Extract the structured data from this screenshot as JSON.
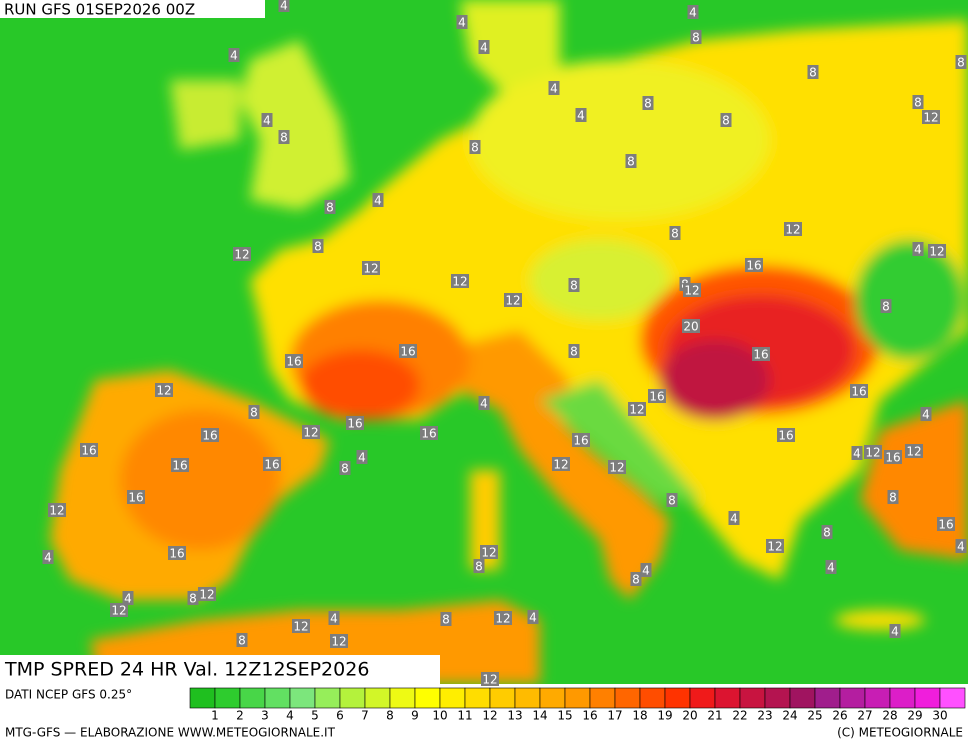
{
  "header": {
    "run": "RUN GFS 01SEP2026 00Z",
    "title": "TMP SPRED 24 HR Val. 12Z12SEP2026"
  },
  "footer": {
    "source": "DATI NCEP GFS 0.25°",
    "credit": "MTG-GFS — ELABORAZIONE WWW.METEOGIORNALE.IT",
    "copyright": "(C) METEOGIORNALE"
  },
  "colorbar": {
    "ticks": [
      1,
      2,
      3,
      4,
      5,
      6,
      7,
      8,
      9,
      10,
      11,
      12,
      13,
      14,
      15,
      16,
      17,
      18,
      19,
      20,
      21,
      22,
      23,
      24,
      25,
      26,
      27,
      28,
      29,
      30
    ],
    "colors": [
      "#1fbf1f",
      "#2ecc2e",
      "#48d648",
      "#62e062",
      "#7ce67c",
      "#96ee5a",
      "#b4f23c",
      "#d2f628",
      "#eefa14",
      "#ffff00",
      "#ffee00",
      "#ffdd00",
      "#ffcc00",
      "#ffbb00",
      "#ffaa00",
      "#ff9900",
      "#ff8000",
      "#ff6600",
      "#ff4d00",
      "#ff3300",
      "#f01a1a",
      "#dc1430",
      "#c81440",
      "#b41450",
      "#a01460",
      "#a01e8c",
      "#b41ea0",
      "#c81eb4",
      "#dc1ec8",
      "#f01edc",
      "#ff50ff"
    ]
  },
  "contour_labels": [
    4,
    4,
    4,
    8,
    4,
    4,
    8,
    8,
    4,
    8,
    4,
    8,
    12,
    4,
    8,
    8,
    8,
    8,
    4,
    8,
    8,
    12,
    12,
    8,
    12,
    4,
    12,
    12,
    8,
    8,
    12,
    16,
    12,
    8,
    20,
    16,
    16,
    8,
    16,
    12,
    8,
    16,
    16,
    12,
    12,
    16,
    16,
    4,
    4,
    16,
    16,
    16,
    16,
    16,
    16,
    8,
    4,
    12,
    12,
    4,
    12,
    16,
    12,
    16,
    8,
    12,
    8,
    4,
    16,
    8,
    16,
    12,
    8,
    12,
    4,
    4,
    4,
    8,
    4,
    8,
    12,
    4,
    12,
    4,
    8,
    12,
    4,
    12,
    12,
    8,
    4,
    12
  ]
}
